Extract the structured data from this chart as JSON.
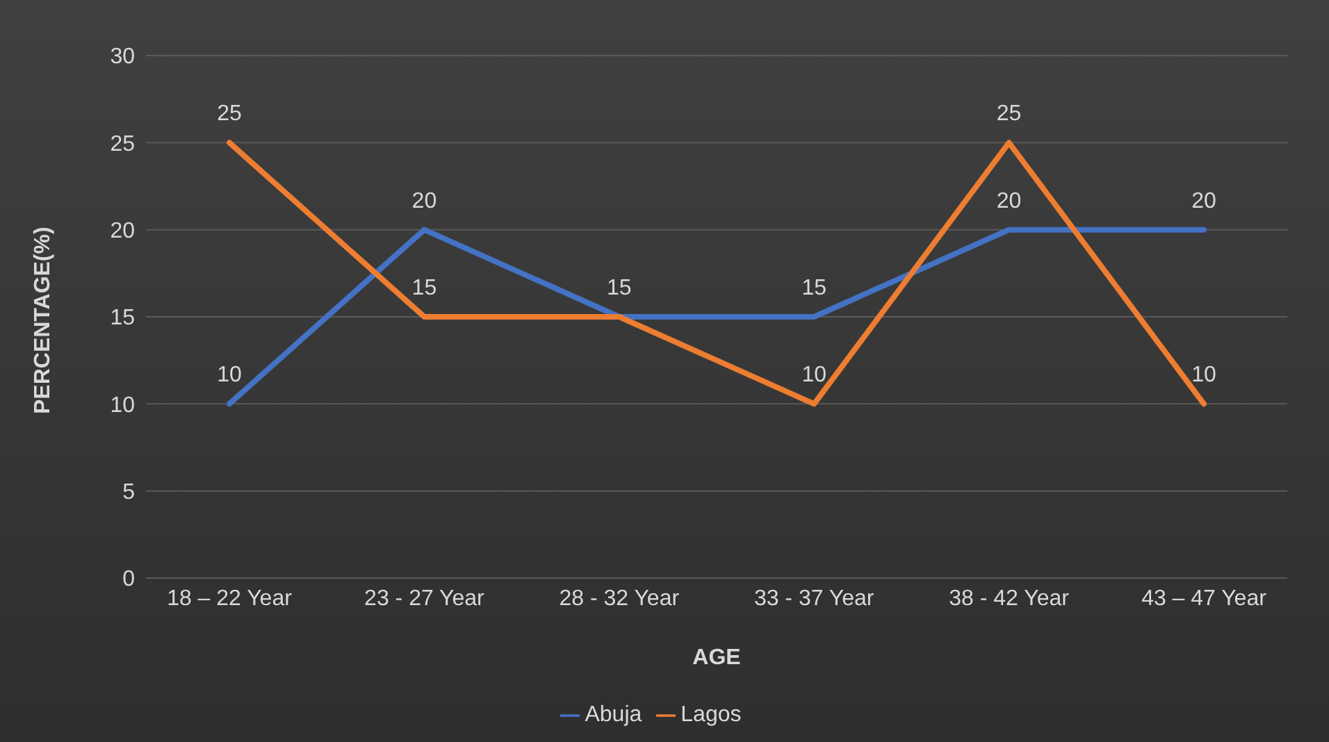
{
  "chart_data": {
    "type": "line",
    "xlabel": "AGE",
    "ylabel": "PERCENTAGE(%)",
    "categories": [
      "18 – 22 Year",
      "23 - 27 Year",
      "28 - 32 Year",
      "33 - 37 Year",
      "38 - 42 Year",
      "43 – 47 Year"
    ],
    "series": [
      {
        "name": "Abuja",
        "color": "#4472c4",
        "values": [
          10,
          20,
          15,
          15,
          20,
          20
        ],
        "value_labels": [
          "10",
          "20",
          "15",
          "15",
          "20",
          "20"
        ]
      },
      {
        "name": "Lagos",
        "color": "#ed7d31",
        "values": [
          25,
          15,
          15,
          10,
          25,
          10
        ],
        "value_labels": [
          "25",
          "15",
          null,
          "10",
          "25",
          "10"
        ]
      }
    ],
    "ylim": [
      0,
      30
    ],
    "yticks": [
      0,
      5,
      10,
      15,
      20,
      25,
      30
    ],
    "grid": "y",
    "legend": "bottom",
    "marker": "none",
    "line_style": "solid"
  }
}
